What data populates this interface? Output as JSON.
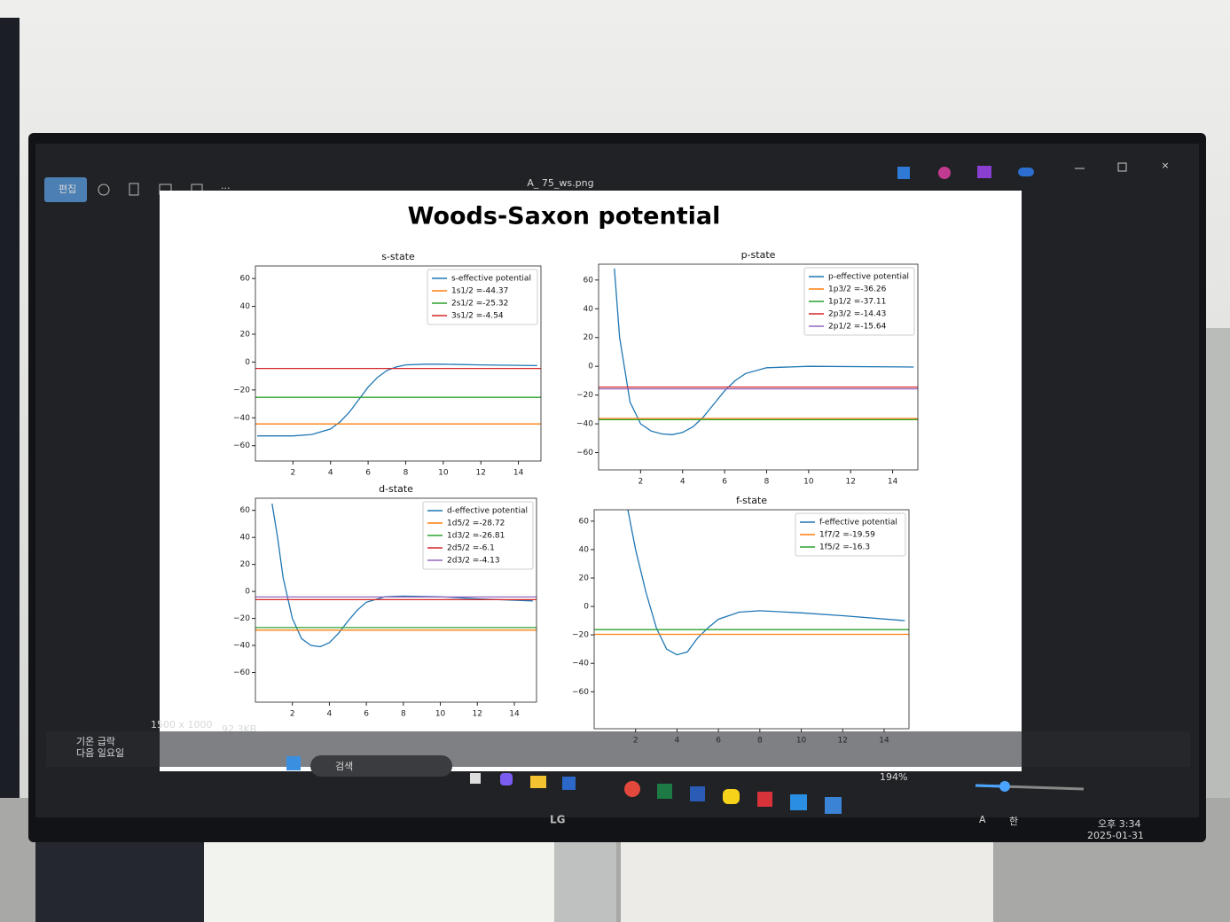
{
  "viewer": {
    "file_name": "A_ 75_ws.png",
    "edit": "편집",
    "dimensions": "1500 x 1000",
    "file_size": "92.3KB",
    "zoom": "194%",
    "search": "검색",
    "weather_1": "기온 급락",
    "weather_2": "다음 일요일",
    "time": "오후 3:34",
    "date": "2025-01-31",
    "brand": "LG",
    "ime_1": "A",
    "ime_2": "한",
    "suptitle": "Woods-Saxon potential"
  },
  "chart_data": [
    {
      "type": "line",
      "title": "s-state",
      "xlim": [
        0,
        15.2
      ],
      "xticks": [
        2,
        4,
        6,
        8,
        10,
        12,
        14
      ],
      "ylim": [
        -71,
        69
      ],
      "yticks": [
        {
          "value": -60,
          "label": "−60"
        },
        {
          "value": -40,
          "label": "−40"
        },
        {
          "value": -20,
          "label": "−20"
        },
        0,
        20,
        40,
        60
      ],
      "legend": "upper right",
      "series": [
        {
          "name": "s-effective potential",
          "color": "#1f77b4",
          "x": [
            0.1,
            1,
            2,
            3,
            4,
            4.5,
            5,
            5.5,
            6,
            6.5,
            7,
            7.5,
            8,
            9,
            10,
            12,
            15
          ],
          "values": [
            -53,
            -53,
            -53,
            -52,
            -48,
            -43,
            -36,
            -27,
            -18,
            -11,
            -6,
            -3.5,
            -2,
            -1.5,
            -1.5,
            -2,
            -2.5
          ]
        },
        {
          "name": "1s1/2 =-44.37",
          "color": "#ff7f0e",
          "x": [
            0,
            15.2
          ],
          "values": [
            -44.37,
            -44.37
          ]
        },
        {
          "name": "2s1/2 =-25.32",
          "color": "#2ca02c",
          "x": [
            0,
            15.2
          ],
          "values": [
            -25.32,
            -25.32
          ]
        },
        {
          "name": "3s1/2 =-4.54",
          "color": "#d62728",
          "x": [
            0,
            15.2
          ],
          "values": [
            -4.54,
            -4.54
          ]
        }
      ]
    },
    {
      "type": "line",
      "title": "p-state",
      "xlim": [
        0,
        15.2
      ],
      "xticks": [
        2,
        4,
        6,
        8,
        10,
        12,
        14
      ],
      "ylim": [
        -72,
        71
      ],
      "yticks": [
        {
          "value": -60,
          "label": "−60"
        },
        {
          "value": -40,
          "label": "−40"
        },
        {
          "value": -20,
          "label": "−20"
        },
        0,
        20,
        40,
        60
      ],
      "legend": "upper right",
      "series": [
        {
          "name": "p-effective potential",
          "color": "#1f77b4",
          "x": [
            0.75,
            1,
            1.5,
            2,
            2.5,
            3,
            3.5,
            4,
            4.5,
            5,
            5.5,
            6,
            6.5,
            7,
            8,
            10,
            15
          ],
          "values": [
            68,
            20,
            -25,
            -40,
            -45,
            -47,
            -47.5,
            -46,
            -42,
            -35,
            -26,
            -17,
            -10,
            -5,
            -1,
            0,
            -0.5
          ]
        },
        {
          "name": "1p3/2 =-36.26",
          "color": "#ff7f0e",
          "x": [
            0,
            15.2
          ],
          "values": [
            -36.26,
            -36.26
          ]
        },
        {
          "name": "1p1/2 =-37.11",
          "color": "#2ca02c",
          "x": [
            0,
            15.2
          ],
          "values": [
            -37.11,
            -37.11
          ]
        },
        {
          "name": "2p3/2 =-14.43",
          "color": "#d62728",
          "x": [
            0,
            15.2
          ],
          "values": [
            -14.43,
            -14.43
          ]
        },
        {
          "name": "2p1/2 =-15.64",
          "color": "#9467bd",
          "x": [
            0,
            15.2
          ],
          "values": [
            -15.64,
            -15.64
          ]
        }
      ]
    },
    {
      "type": "line",
      "title": "d-state",
      "xlim": [
        0,
        15.2
      ],
      "xticks": [
        2,
        4,
        6,
        8,
        10,
        12,
        14
      ],
      "ylim": [
        -82,
        69
      ],
      "yticks": [
        {
          "value": -60,
          "label": "−60"
        },
        {
          "value": -40,
          "label": "−40"
        },
        {
          "value": -20,
          "label": "−20"
        },
        0,
        20,
        40,
        60
      ],
      "legend": "upper right",
      "series": [
        {
          "name": "d-effective potential",
          "color": "#1f77b4",
          "x": [
            0.9,
            1.2,
            1.5,
            2,
            2.5,
            3,
            3.5,
            4,
            4.5,
            5,
            5.5,
            6,
            7,
            8,
            10,
            12,
            15
          ],
          "values": [
            65,
            40,
            10,
            -20,
            -35,
            -40,
            -41,
            -38,
            -31,
            -22,
            -14,
            -8,
            -4,
            -3.5,
            -4,
            -5.5,
            -7
          ]
        },
        {
          "name": "1d5/2 =-28.72",
          "color": "#ff7f0e",
          "x": [
            0,
            15.2
          ],
          "values": [
            -28.72,
            -28.72
          ]
        },
        {
          "name": "1d3/2 =-26.81",
          "color": "#2ca02c",
          "x": [
            0,
            15.2
          ],
          "values": [
            -26.81,
            -26.81
          ]
        },
        {
          "name": "2d5/2 =-6.1",
          "color": "#d62728",
          "x": [
            0,
            15.2
          ],
          "values": [
            -6.1,
            -6.1
          ]
        },
        {
          "name": "2d3/2 =-4.13",
          "color": "#9467bd",
          "x": [
            0,
            15.2
          ],
          "values": [
            -4.13,
            -4.13
          ]
        }
      ]
    },
    {
      "type": "line",
      "title": "f-state",
      "xlim": [
        0,
        15.2
      ],
      "xticks": [
        2,
        4,
        6,
        8,
        10,
        12,
        14
      ],
      "ylim": [
        -86,
        68
      ],
      "yticks": [
        {
          "value": -60,
          "label": "−60"
        },
        {
          "value": -40,
          "label": "−40"
        },
        {
          "value": -20,
          "label": "−20"
        },
        0,
        20,
        40,
        60
      ],
      "legend": "upper right",
      "series": [
        {
          "name": "f-effective potential",
          "color": "#1f77b4",
          "x": [
            1.6,
            2,
            2.5,
            3,
            3.5,
            4,
            4.5,
            5,
            5.5,
            6,
            7,
            8,
            10,
            12,
            15
          ],
          "values": [
            70,
            40,
            10,
            -15,
            -30,
            -34,
            -32,
            -22,
            -15,
            -9,
            -4,
            -3,
            -4.5,
            -6.5,
            -10
          ]
        },
        {
          "name": "1f7/2 =-19.59",
          "color": "#ff7f0e",
          "x": [
            0,
            15.2
          ],
          "values": [
            -19.59,
            -19.59
          ]
        },
        {
          "name": "1f5/2 =-16.3",
          "color": "#2ca02c",
          "x": [
            0,
            15.2
          ],
          "values": [
            -16.3,
            -16.3
          ]
        }
      ]
    }
  ]
}
